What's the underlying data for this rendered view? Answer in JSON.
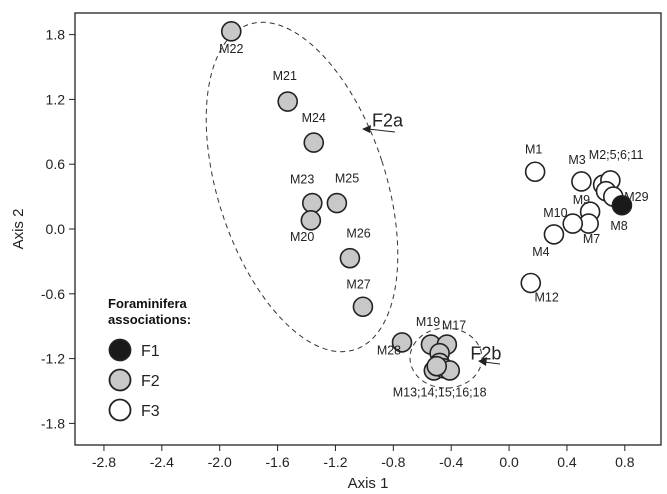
{
  "chart_data": {
    "type": "scatter",
    "title": "",
    "xlabel": "Axis 1",
    "ylabel": "Axis 2",
    "xlim": [
      -3.0,
      1.05
    ],
    "ylim": [
      -2.0,
      2.0
    ],
    "xticks": [
      "-2.8",
      "-2.4",
      "-2.0",
      "-1.6",
      "-1.2",
      "-0.8",
      "-0.4",
      "0.0",
      "0.4",
      "0.8"
    ],
    "xtick_values": [
      -2.8,
      -2.4,
      -2.0,
      -1.6,
      -1.2,
      -0.8,
      -0.4,
      0.0,
      0.4,
      0.8
    ],
    "yticks": [
      "1.8",
      "1.2",
      "0.6",
      "0.0",
      "-0.6",
      "-1.2",
      "-1.8"
    ],
    "ytick_values": [
      1.8,
      1.2,
      0.6,
      0.0,
      -0.6,
      -1.2,
      -1.8
    ],
    "grid": false,
    "colors": {
      "F1": "#1a1a1a",
      "F2": "#c8c8c8",
      "F3": "#ffffff",
      "stroke": "#222222"
    },
    "legend": {
      "title_lines": [
        "Foraminifera",
        "associations:"
      ],
      "placement": "bottom-left",
      "entries": [
        {
          "name": "F1",
          "fill": "#1a1a1a"
        },
        {
          "name": "F2",
          "fill": "#c8c8c8"
        },
        {
          "name": "F3",
          "fill": "#ffffff"
        }
      ]
    },
    "points": [
      {
        "x": -1.92,
        "y": 1.83,
        "group": "F2"
      },
      {
        "x": -1.53,
        "y": 1.18,
        "group": "F2"
      },
      {
        "x": -1.35,
        "y": 0.8,
        "group": "F2"
      },
      {
        "x": -1.36,
        "y": 0.24,
        "group": "F2"
      },
      {
        "x": -1.19,
        "y": 0.24,
        "group": "F2"
      },
      {
        "x": -1.37,
        "y": 0.08,
        "group": "F2"
      },
      {
        "x": -1.1,
        "y": -0.27,
        "group": "F2"
      },
      {
        "x": -1.01,
        "y": -0.72,
        "group": "F2"
      },
      {
        "x": -0.74,
        "y": -1.05,
        "group": "F2"
      },
      {
        "x": -0.54,
        "y": -1.07,
        "group": "F2"
      },
      {
        "x": -0.43,
        "y": -1.07,
        "group": "F2"
      },
      {
        "x": -0.48,
        "y": -1.15,
        "group": "F2"
      },
      {
        "x": -0.48,
        "y": -1.24,
        "group": "F2"
      },
      {
        "x": -0.52,
        "y": -1.31,
        "group": "F2"
      },
      {
        "x": -0.45,
        "y": -1.29,
        "group": "F2"
      },
      {
        "x": -0.41,
        "y": -1.31,
        "group": "F2"
      },
      {
        "x": -0.5,
        "y": -1.27,
        "group": "F2"
      },
      {
        "x": 0.18,
        "y": 0.53,
        "group": "F3"
      },
      {
        "x": 0.5,
        "y": 0.44,
        "group": "F3"
      },
      {
        "x": 0.65,
        "y": 0.41,
        "group": "F3"
      },
      {
        "x": 0.7,
        "y": 0.45,
        "group": "F3"
      },
      {
        "x": 0.67,
        "y": 0.35,
        "group": "F3"
      },
      {
        "x": 0.72,
        "y": 0.3,
        "group": "F3"
      },
      {
        "x": 0.56,
        "y": 0.16,
        "group": "F3"
      },
      {
        "x": 0.55,
        "y": 0.05,
        "group": "F3"
      },
      {
        "x": 0.44,
        "y": 0.05,
        "group": "F3"
      },
      {
        "x": 0.31,
        "y": -0.05,
        "group": "F3"
      },
      {
        "x": 0.15,
        "y": -0.5,
        "group": "F3"
      },
      {
        "x": 0.78,
        "y": 0.22,
        "group": "F1"
      }
    ],
    "point_labels": [
      {
        "text": "M22",
        "x": -1.92,
        "y": 1.63
      },
      {
        "text": "M21",
        "x": -1.55,
        "y": 1.38
      },
      {
        "text": "M24",
        "x": -1.35,
        "y": 0.99
      },
      {
        "text": "M23",
        "x": -1.43,
        "y": 0.42
      },
      {
        "text": "M25",
        "x": -1.12,
        "y": 0.43
      },
      {
        "text": "M20",
        "x": -1.43,
        "y": -0.11
      },
      {
        "text": "M26",
        "x": -1.04,
        "y": -0.08
      },
      {
        "text": "M27",
        "x": -1.04,
        "y": -0.55
      },
      {
        "text": "M28",
        "x": -0.83,
        "y": -1.16
      },
      {
        "text": "M19",
        "x": -0.56,
        "y": -0.9
      },
      {
        "text": "M17",
        "x": -0.38,
        "y": -0.93
      },
      {
        "text": "M13;14;15;16;18",
        "x": -0.48,
        "y": -1.55
      },
      {
        "text": "M1",
        "x": 0.17,
        "y": 0.7
      },
      {
        "text": "M3",
        "x": 0.47,
        "y": 0.6
      },
      {
        "text": "M2;5;6;11",
        "x": 0.74,
        "y": 0.65
      },
      {
        "text": "M29",
        "x": 0.88,
        "y": 0.26
      },
      {
        "text": "M9",
        "x": 0.5,
        "y": 0.23
      },
      {
        "text": "M8",
        "x": 0.76,
        "y": -0.01
      },
      {
        "text": "M10",
        "x": 0.32,
        "y": 0.11
      },
      {
        "text": "M7",
        "x": 0.57,
        "y": -0.13
      },
      {
        "text": "M4",
        "x": 0.22,
        "y": -0.25
      },
      {
        "text": "M12",
        "x": 0.26,
        "y": -0.67
      }
    ],
    "group_labels": [
      {
        "text": "F2a",
        "x": -0.84,
        "y": 0.95
      },
      {
        "text": "F2b",
        "x": -0.16,
        "y": -1.21
      }
    ]
  }
}
